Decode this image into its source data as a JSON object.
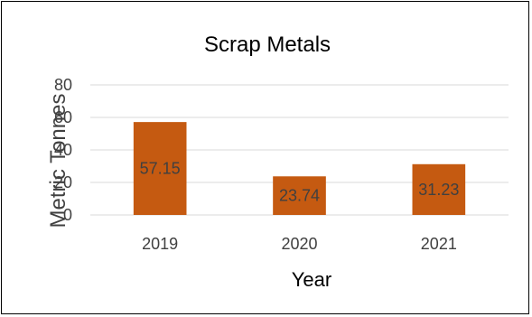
{
  "chart_data": {
    "type": "bar",
    "title": "Scrap Metals",
    "xlabel": "Year",
    "ylabel": "Metric Tonnes",
    "categories": [
      "2019",
      "2020",
      "2021"
    ],
    "values": [
      57.15,
      23.74,
      31.23
    ],
    "value_labels": [
      "57.15",
      "23.74",
      "31.23"
    ],
    "y_ticks": [
      "0",
      "20",
      "40",
      "60",
      "80"
    ],
    "ylim": [
      0,
      80
    ],
    "grid": true,
    "legend": "none",
    "bar_color": "#c55a11"
  }
}
